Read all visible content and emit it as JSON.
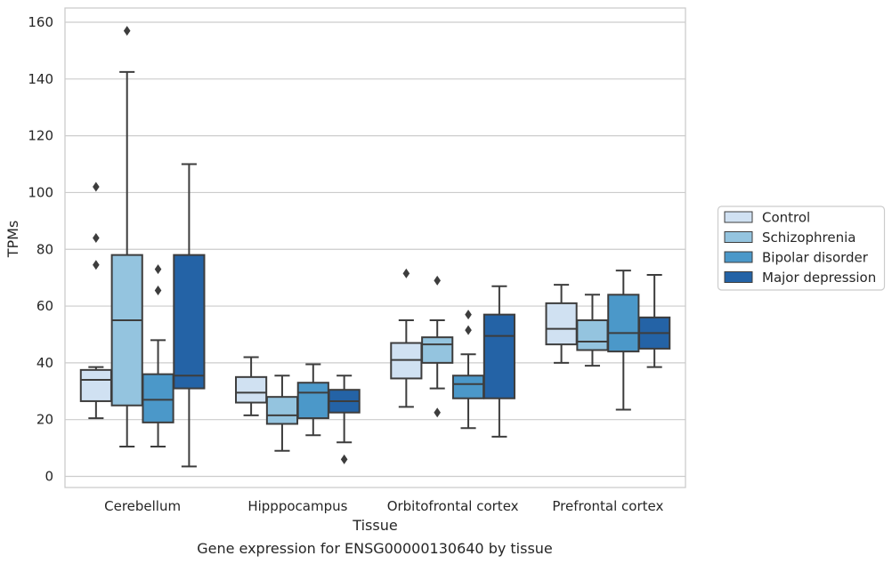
{
  "caption": "Gene expression for ENSG00000130640 by tissue",
  "chart_data": {
    "type": "boxplot",
    "xlabel": "Tissue",
    "ylabel": "TPMs",
    "ylim": [
      -4,
      165
    ],
    "yticks": [
      0,
      20,
      40,
      60,
      80,
      100,
      120,
      140,
      160
    ],
    "grid": "horizontal",
    "legend_position": "right",
    "categories": [
      "Cerebellum",
      "Hipppocampus",
      "Orbitofrontal cortex",
      "Prefrontal cortex"
    ],
    "series": [
      {
        "name": "Control",
        "color": "#d0e1f2",
        "boxes": [
          {
            "whislo": 20.5,
            "q1": 26.5,
            "med": 34,
            "q3": 37.5,
            "whishi": 38.5,
            "fliers": [
              102,
              84,
              74.5
            ]
          },
          {
            "whislo": 21.5,
            "q1": 26,
            "med": 29.5,
            "q3": 35,
            "whishi": 42,
            "fliers": []
          },
          {
            "whislo": 24.5,
            "q1": 34.5,
            "med": 41,
            "q3": 47,
            "whishi": 55,
            "fliers": [
              71.5
            ]
          },
          {
            "whislo": 40,
            "q1": 46.5,
            "med": 52,
            "q3": 61,
            "whishi": 67.5,
            "fliers": []
          }
        ]
      },
      {
        "name": "Schizophrenia",
        "color": "#94c4df",
        "boxes": [
          {
            "whislo": 10.5,
            "q1": 25,
            "med": 55,
            "q3": 78,
            "whishi": 142.5,
            "fliers": [
              157
            ]
          },
          {
            "whislo": 9,
            "q1": 18.5,
            "med": 21.5,
            "q3": 28,
            "whishi": 35.5,
            "fliers": []
          },
          {
            "whislo": 31,
            "q1": 40,
            "med": 46.5,
            "q3": 49,
            "whishi": 55,
            "fliers": [
              69,
              22.5
            ]
          },
          {
            "whislo": 39,
            "q1": 44.5,
            "med": 47.5,
            "q3": 55,
            "whishi": 64,
            "fliers": []
          }
        ]
      },
      {
        "name": "Bipolar disorder",
        "color": "#4b98c9",
        "boxes": [
          {
            "whislo": 10.5,
            "q1": 19,
            "med": 27,
            "q3": 36,
            "whishi": 48,
            "fliers": [
              73,
              65.5
            ]
          },
          {
            "whislo": 14.5,
            "q1": 20.5,
            "med": 29.5,
            "q3": 33,
            "whishi": 39.5,
            "fliers": []
          },
          {
            "whislo": 17,
            "q1": 27.5,
            "med": 32.5,
            "q3": 35.5,
            "whishi": 43,
            "fliers": [
              57,
              51.5
            ]
          },
          {
            "whislo": 23.5,
            "q1": 44,
            "med": 50.5,
            "q3": 64,
            "whishi": 72.5,
            "fliers": []
          }
        ]
      },
      {
        "name": "Major depression",
        "color": "#2463a6",
        "boxes": [
          {
            "whislo": 3.5,
            "q1": 31,
            "med": 35.5,
            "q3": 78,
            "whishi": 110,
            "fliers": []
          },
          {
            "whislo": 12,
            "q1": 22.5,
            "med": 26.5,
            "q3": 30.5,
            "whishi": 35.5,
            "fliers": [
              6
            ]
          },
          {
            "whislo": 14,
            "q1": 27.5,
            "med": 49.5,
            "q3": 57,
            "whishi": 67,
            "fliers": []
          },
          {
            "whislo": 38.5,
            "q1": 45,
            "med": 50.5,
            "q3": 56,
            "whishi": 71,
            "fliers": []
          }
        ]
      }
    ]
  }
}
